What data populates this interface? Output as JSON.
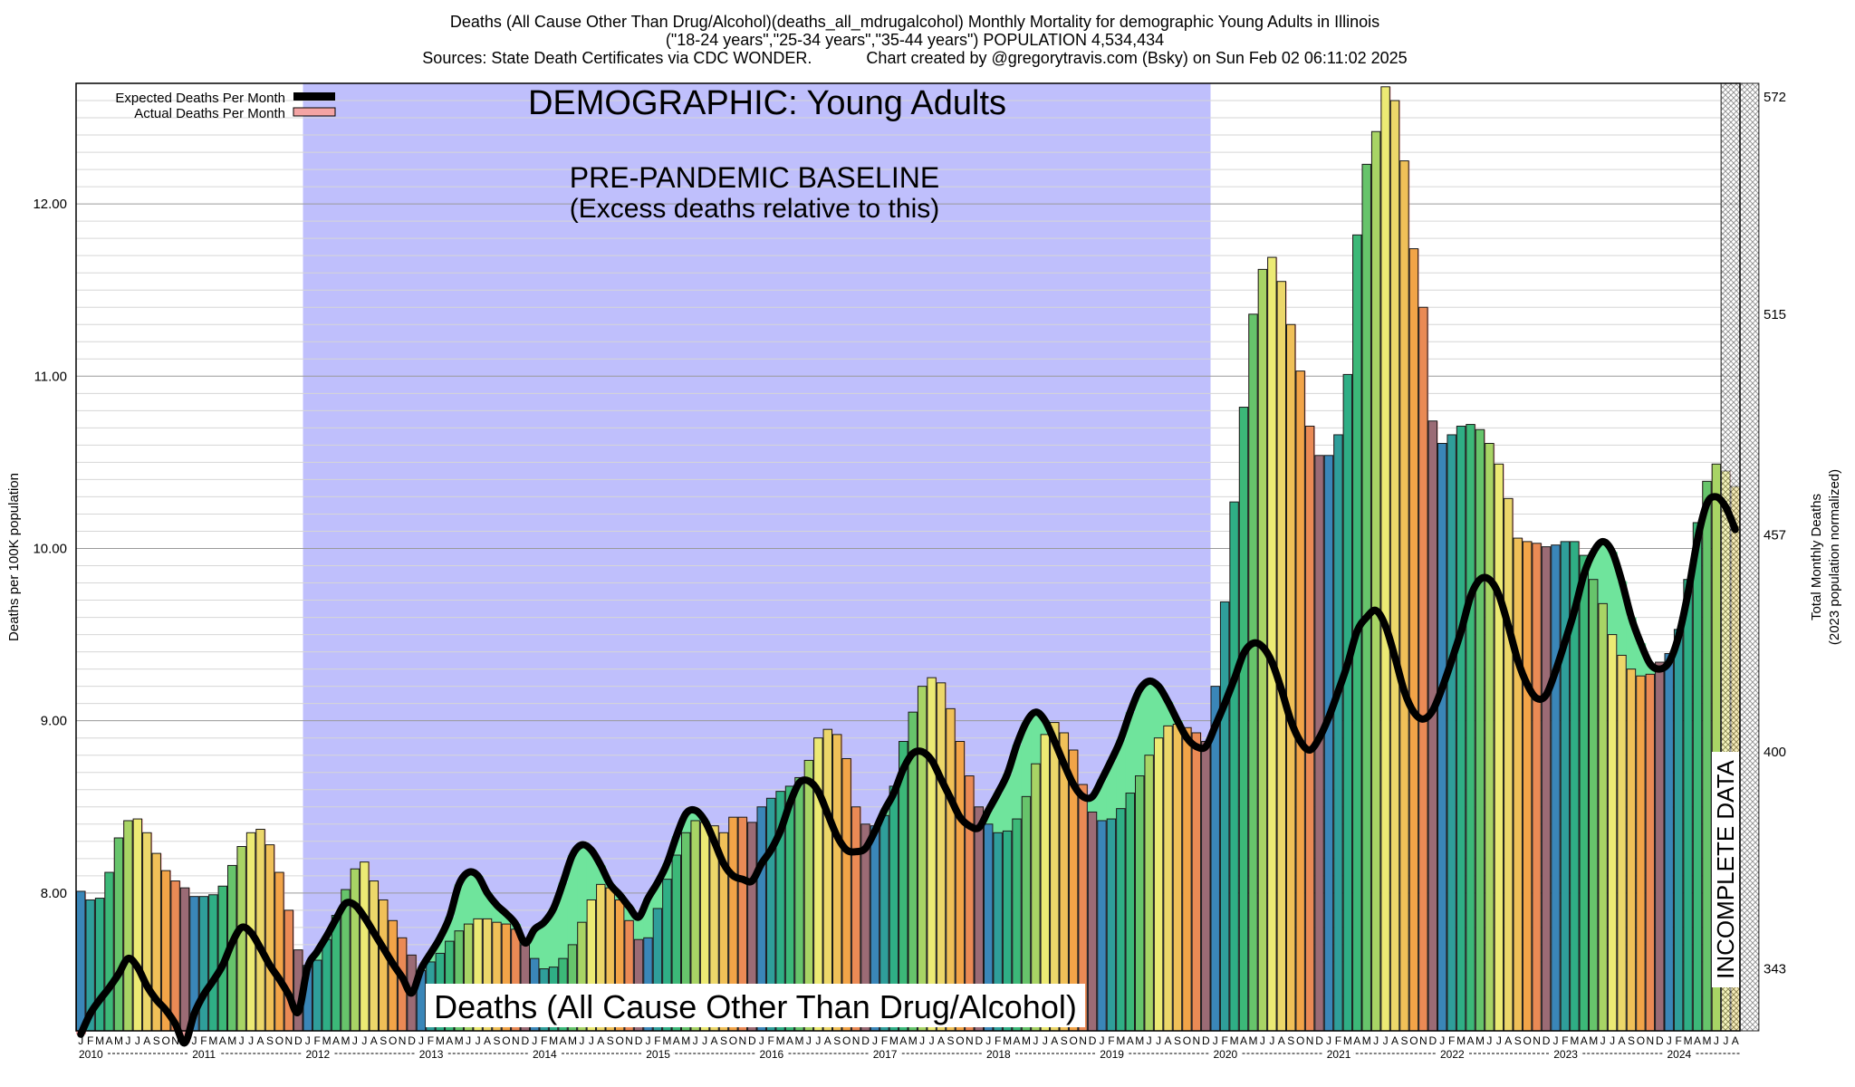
{
  "titles": {
    "line1": "Deaths (All Cause Other Than Drug/Alcohol)(deaths_all_mdrugalcohol) Monthly Mortality for demographic Young Adults in Illinois",
    "line2": "(\"18-24 years\",\"25-34 years\",\"35-44 years\") POPULATION 4,534,434",
    "line3": "Sources: State Death Certificates via CDC WONDER.            Chart created by @gregorytravis.com (Bsky) on Sun Feb 02 06:11:02 2025"
  },
  "annotations": {
    "demographic": "DEMOGRAPHIC: Young Adults",
    "baseline1": "PRE-PANDEMIC BASELINE",
    "baseline2": "(Excess deaths relative to this)",
    "bottom_label": "Deaths (All Cause Other Than Drug/Alcohol)",
    "incomplete": "INCOMPLETE DATA"
  },
  "legend": {
    "expected": "Expected Deaths Per Month",
    "actual": "Actual Deaths Per Month"
  },
  "axes": {
    "y_left_label": "Deaths per 100K population",
    "y_right_label1": "Total Monthly Deaths",
    "y_right_label2": "(2023 population normalized)"
  },
  "colors": {
    "baseline_shade": "#bfbffc",
    "excess_fill": "#f4a4a4",
    "expected_line": "#000000",
    "deficit_fill": "#6fe49c"
  },
  "chart_data": {
    "type": "bar",
    "x_start": "2010-01",
    "x_end": "2024-10",
    "baseline_range": [
      "2012-01",
      "2019-12"
    ],
    "incomplete_range": [
      "2024-07",
      "2024-10"
    ],
    "ylim": [
      7.2,
      12.7
    ],
    "yticks_left": [
      "8.00",
      "9.00",
      "10.00",
      "11.00",
      "12.00"
    ],
    "yticks_left_values": [
      8,
      9,
      10,
      11,
      12
    ],
    "yticks_right": [
      "343",
      "400",
      "457",
      "515",
      "572"
    ],
    "yticks_right_values": [
      7.56,
      8.82,
      10.08,
      11.36,
      12.62
    ],
    "month_letters": [
      "J",
      "F",
      "M",
      "A",
      "M",
      "J",
      "J",
      "A",
      "S",
      "O",
      "N",
      "D"
    ],
    "years": [
      "2010",
      "2011",
      "2012",
      "2013",
      "2014",
      "2015",
      "2016",
      "2017",
      "2018",
      "2019",
      "2020",
      "2021",
      "2022",
      "2023",
      "2024"
    ],
    "series": [
      {
        "name": "Actual Deaths Per Month",
        "values": [
          8.01,
          7.96,
          7.97,
          8.12,
          8.32,
          8.42,
          8.43,
          8.35,
          8.23,
          8.13,
          8.07,
          8.03,
          7.98,
          7.98,
          7.99,
          8.04,
          8.16,
          8.27,
          8.35,
          8.37,
          8.28,
          8.12,
          7.9,
          7.67,
          7.58,
          7.61,
          7.73,
          7.87,
          8.02,
          8.14,
          8.18,
          8.07,
          7.96,
          7.84,
          7.74,
          7.64,
          7.55,
          7.6,
          7.65,
          7.72,
          7.78,
          7.82,
          7.85,
          7.85,
          7.83,
          7.82,
          7.79,
          7.7,
          7.62,
          7.56,
          7.57,
          7.62,
          7.7,
          7.83,
          7.96,
          8.05,
          8.03,
          7.96,
          7.84,
          7.73,
          7.74,
          7.91,
          8.08,
          8.22,
          8.35,
          8.42,
          8.41,
          8.39,
          8.35,
          8.44,
          8.44,
          8.41,
          8.5,
          8.55,
          8.59,
          8.62,
          8.67,
          8.77,
          8.9,
          8.95,
          8.92,
          8.78,
          8.5,
          8.4,
          8.39,
          8.45,
          8.62,
          8.88,
          9.05,
          9.2,
          9.25,
          9.22,
          9.07,
          8.88,
          8.68,
          8.5,
          8.4,
          8.35,
          8.36,
          8.43,
          8.56,
          8.75,
          8.92,
          8.99,
          8.93,
          8.83,
          8.63,
          8.47,
          8.42,
          8.43,
          8.49,
          8.58,
          8.68,
          8.8,
          8.9,
          8.97,
          8.98,
          8.96,
          8.93,
          8.88,
          9.2,
          9.69,
          10.27,
          10.82,
          11.36,
          11.62,
          11.69,
          11.55,
          11.3,
          11.03,
          10.71,
          10.54,
          10.54,
          10.66,
          11.01,
          11.82,
          12.23,
          12.42,
          12.68,
          12.6,
          12.25,
          11.74,
          11.4,
          10.74,
          10.61,
          10.66,
          10.71,
          10.72,
          10.69,
          10.61,
          10.49,
          10.29,
          10.06,
          10.04,
          10.03,
          10.01,
          10.02,
          10.04,
          10.04,
          9.96,
          9.82,
          9.68,
          9.5,
          9.38,
          9.3,
          9.26,
          9.27,
          9.34,
          9.39,
          9.53,
          9.82,
          10.15,
          10.39,
          10.49,
          10.45,
          10.36
        ]
      },
      {
        "name": "Expected Deaths Per Month",
        "values": [
          7.18,
          7.3,
          7.38,
          7.45,
          7.53,
          7.62,
          7.57,
          7.46,
          7.38,
          7.32,
          7.24,
          7.13,
          7.3,
          7.41,
          7.49,
          7.58,
          7.71,
          7.8,
          7.77,
          7.68,
          7.58,
          7.5,
          7.41,
          7.31,
          7.57,
          7.66,
          7.75,
          7.85,
          7.94,
          7.93,
          7.86,
          7.77,
          7.68,
          7.59,
          7.51,
          7.42,
          7.56,
          7.65,
          7.74,
          7.86,
          8.05,
          8.12,
          8.1,
          8.0,
          7.93,
          7.88,
          7.82,
          7.71,
          7.79,
          7.83,
          7.91,
          8.06,
          8.22,
          8.28,
          8.25,
          8.16,
          8.05,
          7.99,
          7.92,
          7.86,
          7.97,
          8.06,
          8.17,
          8.33,
          8.46,
          8.48,
          8.42,
          8.3,
          8.17,
          8.1,
          8.08,
          8.07,
          8.17,
          8.25,
          8.36,
          8.52,
          8.64,
          8.65,
          8.59,
          8.46,
          8.33,
          8.25,
          8.24,
          8.26,
          8.36,
          8.48,
          8.58,
          8.72,
          8.81,
          8.82,
          8.77,
          8.66,
          8.55,
          8.44,
          8.39,
          8.38,
          8.48,
          8.58,
          8.69,
          8.86,
          8.99,
          9.05,
          9.0,
          8.88,
          8.75,
          8.63,
          8.56,
          8.56,
          8.66,
          8.77,
          8.89,
          9.05,
          9.18,
          9.23,
          9.2,
          9.11,
          9.0,
          8.9,
          8.85,
          8.85,
          8.97,
          9.1,
          9.24,
          9.39,
          9.45,
          9.43,
          9.34,
          9.18,
          9.0,
          8.88,
          8.83,
          8.9,
          9.02,
          9.17,
          9.33,
          9.52,
          9.6,
          9.64,
          9.55,
          9.37,
          9.17,
          9.05,
          9.01,
          9.06,
          9.19,
          9.35,
          9.52,
          9.72,
          9.82,
          9.82,
          9.73,
          9.55,
          9.35,
          9.21,
          9.13,
          9.15,
          9.29,
          9.46,
          9.64,
          9.85,
          9.98,
          10.04,
          9.98,
          9.81,
          9.6,
          9.45,
          9.33,
          9.3,
          9.34,
          9.49,
          9.74,
          10.05,
          10.26,
          10.3,
          10.24,
          10.11
        ]
      }
    ]
  }
}
